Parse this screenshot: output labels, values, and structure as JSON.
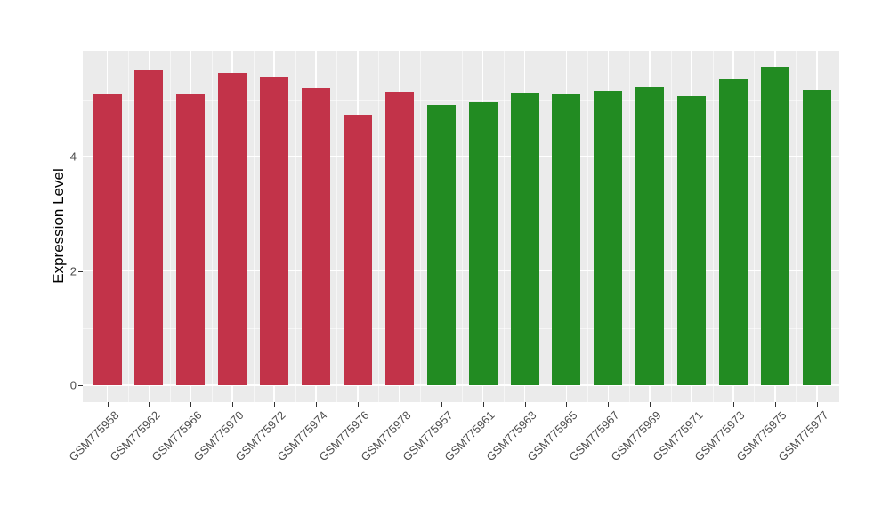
{
  "chart": {
    "background_color": "#FFFFFF",
    "panel_background_color": "#EBEBEB",
    "gridline_major_color": "#FFFFFF",
    "gridline_minor_color": "rgba(255,255,255,0.55)",
    "tick_mark_color": "#333333",
    "tick_label_color": "#4d4d4d"
  },
  "chart_data": {
    "type": "bar",
    "title": "",
    "xlabel": "",
    "ylabel": "Expression Level",
    "legend": "none",
    "grid": "on",
    "y_axis": {
      "ticks": [
        0,
        2,
        4
      ],
      "tick_labels": [
        "0",
        "2",
        "4"
      ],
      "minor_ticks": [
        1,
        3,
        5
      ],
      "range_shown": [
        -0.3,
        5.85
      ]
    },
    "categories": [
      "GSM775958",
      "GSM775962",
      "GSM775966",
      "GSM775970",
      "GSM775972",
      "GSM775974",
      "GSM775976",
      "GSM775978",
      "GSM775957",
      "GSM775961",
      "GSM775963",
      "GSM775965",
      "GSM775967",
      "GSM775969",
      "GSM775971",
      "GSM775973",
      "GSM775975",
      "GSM775977"
    ],
    "values": [
      5.09,
      5.51,
      5.09,
      5.46,
      5.39,
      5.2,
      4.73,
      5.14,
      4.9,
      4.95,
      5.12,
      5.09,
      5.15,
      5.21,
      5.06,
      5.35,
      5.57,
      5.17
    ],
    "groups": [
      "group1",
      "group1",
      "group1",
      "group1",
      "group1",
      "group1",
      "group1",
      "group1",
      "group2",
      "group2",
      "group2",
      "group2",
      "group2",
      "group2",
      "group2",
      "group2",
      "group2",
      "group2"
    ],
    "group_colors": {
      "group1": "#C23349",
      "group2": "#228B22"
    }
  }
}
